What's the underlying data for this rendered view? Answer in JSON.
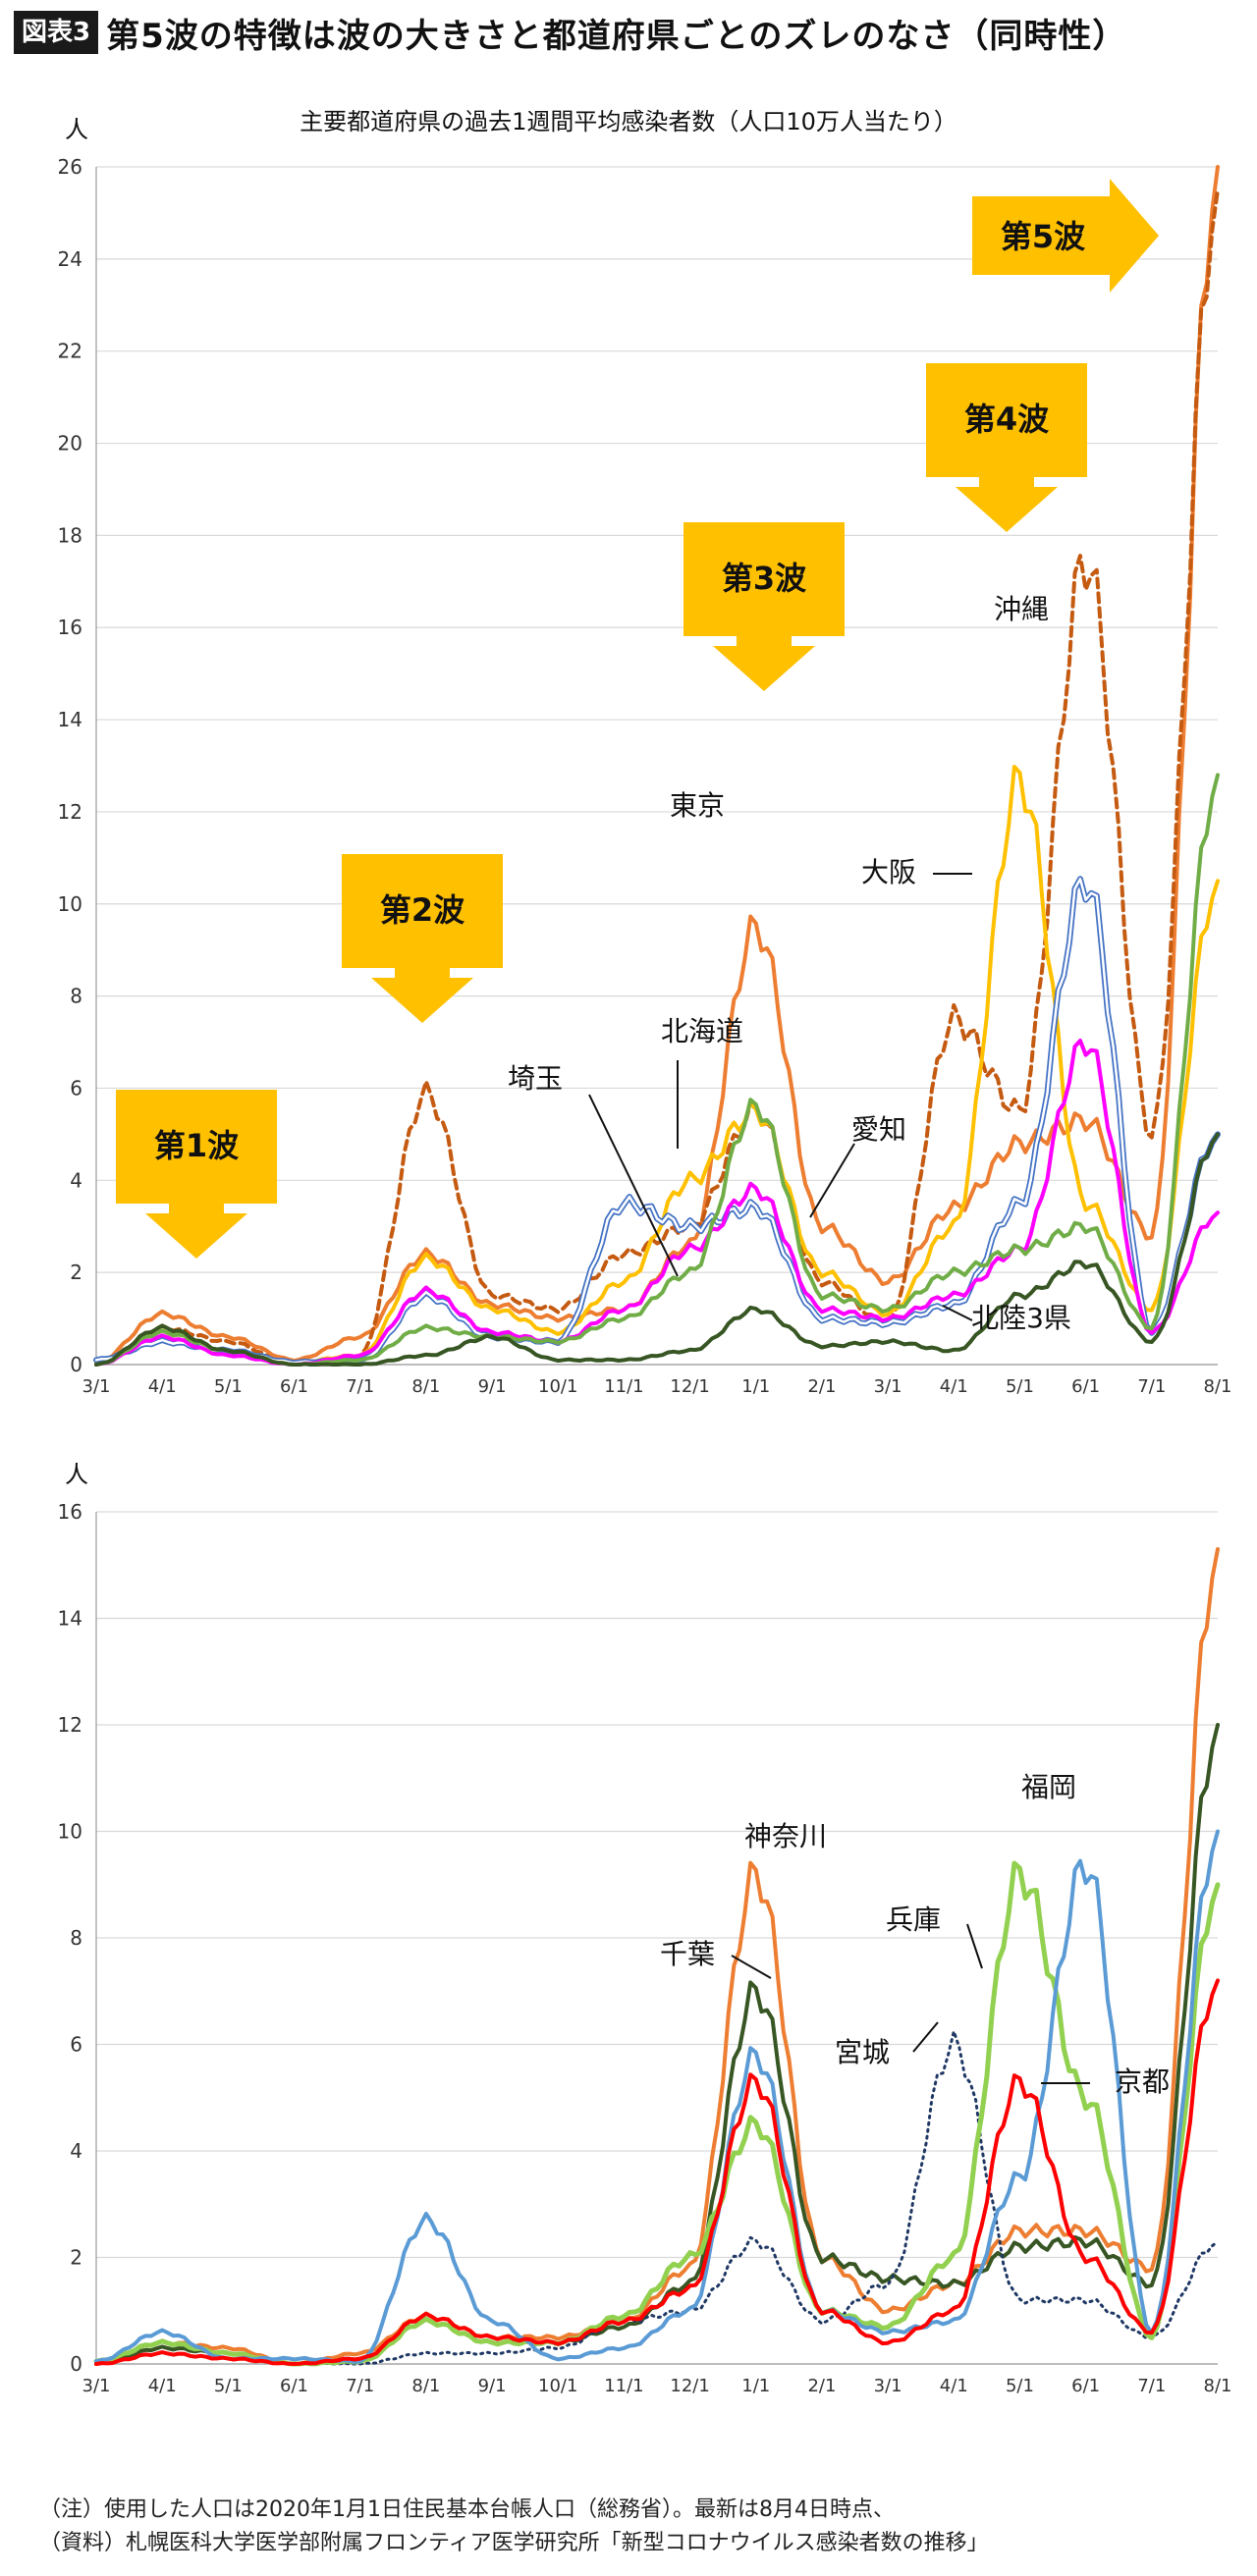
{
  "header": {
    "badge": "図表3",
    "title": "第5波の特徴は波の大きさと都道府県ごとのズレのなさ（同時性）"
  },
  "notes": {
    "line1": "（注）使用した人口は2020年1月1日住民基本台帳人口（総務省）。最新は8月4日時点、",
    "line2": "（資料）札幌医科大学医学部附属フロンティア医学研究所「新型コロナウイルス感染者数の推移」"
  },
  "chart_data": [
    {
      "type": "line",
      "title": "主要都道府県の過去1週間平均感染者数（人口10万人当たり）",
      "ylabel": "人",
      "ylim": [
        0,
        26
      ],
      "yticks": [
        0,
        2,
        4,
        6,
        8,
        10,
        12,
        14,
        16,
        18,
        20,
        22,
        24,
        26
      ],
      "x": [
        "3/1",
        "4/1",
        "5/1",
        "6/1",
        "7/1",
        "8/1",
        "9/1",
        "10/1",
        "11/1",
        "12/1",
        "1/1",
        "2/1",
        "3/1",
        "4/1",
        "5/1",
        "6/1",
        "7/1",
        "8/1"
      ],
      "grid": true,
      "series": [
        {
          "name": "東京",
          "color": "#ED7D31",
          "style": "solid",
          "values": [
            0.05,
            1.1,
            0.6,
            0.1,
            0.6,
            2.4,
            1.3,
            1.0,
            1.2,
            2.6,
            9.5,
            3.0,
            1.8,
            3.4,
            4.8,
            5.3,
            2.8,
            26.0
          ]
        },
        {
          "name": "沖縄",
          "color": "#C55A11",
          "style": "dashed",
          "values": [
            0,
            0.8,
            0.5,
            0,
            0.2,
            5.9,
            1.5,
            1.2,
            2.4,
            3.0,
            5.5,
            1.8,
            0.9,
            7.5,
            5.5,
            17.5,
            5.0,
            25.5
          ]
        },
        {
          "name": "大阪",
          "color": "#FFC000",
          "style": "solid",
          "values": [
            0.05,
            0.7,
            0.3,
            0.05,
            0.2,
            2.3,
            1.2,
            0.7,
            1.8,
            4.0,
            5.5,
            2.0,
            1.1,
            3.0,
            12.7,
            3.5,
            1.2,
            10.5
          ]
        },
        {
          "name": "北海道",
          "color": "#4472C4",
          "style": "double",
          "values": [
            0.1,
            0.5,
            0.3,
            0.05,
            0.1,
            1.5,
            0.6,
            0.5,
            3.5,
            3.0,
            3.4,
            1.0,
            0.9,
            1.3,
            3.5,
            10.5,
            0.7,
            5.0
          ]
        },
        {
          "name": "埼玉",
          "color": "#FF00FF",
          "style": "solid",
          "values": [
            0,
            0.6,
            0.2,
            0,
            0.2,
            1.6,
            0.7,
            0.5,
            1.2,
            2.5,
            3.8,
            1.2,
            1.0,
            1.5,
            2.5,
            7.0,
            0.7,
            3.3
          ]
        },
        {
          "name": "愛知",
          "color": "#70AD47",
          "style": "solid",
          "values": [
            0,
            0.7,
            0.3,
            0,
            0.1,
            0.8,
            0.6,
            0.5,
            1.0,
            2.0,
            5.6,
            1.5,
            1.2,
            2.0,
            2.5,
            3.0,
            0.8,
            12.8
          ]
        },
        {
          "name": "北陸3県",
          "color": "#375623",
          "style": "solid",
          "values": [
            0,
            0.8,
            0.3,
            0,
            0,
            0.2,
            0.6,
            0.1,
            0.1,
            0.3,
            1.2,
            0.4,
            0.5,
            0.3,
            1.5,
            2.2,
            0.5,
            5.0
          ]
        }
      ],
      "labels": [
        "東京",
        "沖縄",
        "大阪",
        "北海道",
        "埼玉",
        "愛知",
        "北陸3県"
      ],
      "annotations": [
        "第1波",
        "第2波",
        "第3波",
        "第4波",
        "第5波"
      ]
    },
    {
      "type": "line",
      "ylabel": "人",
      "ylim": [
        0,
        16
      ],
      "yticks": [
        0,
        2,
        4,
        6,
        8,
        10,
        12,
        14,
        16
      ],
      "x": [
        "3/1",
        "4/1",
        "5/1",
        "6/1",
        "7/1",
        "8/1",
        "9/1",
        "10/1",
        "11/1",
        "12/1",
        "1/1",
        "2/1",
        "3/1",
        "4/1",
        "5/1",
        "6/1",
        "7/1",
        "8/1"
      ],
      "grid": true,
      "series": [
        {
          "name": "神奈川",
          "color": "#ED7D31",
          "style": "solid",
          "values": [
            0,
            0.4,
            0.3,
            0,
            0.2,
            0.9,
            0.5,
            0.5,
            0.8,
            1.8,
            9.2,
            2.0,
            1.0,
            1.5,
            2.5,
            2.5,
            1.8,
            15.3
          ]
        },
        {
          "name": "千葉",
          "color": "#375623",
          "style": "solid",
          "values": [
            0,
            0.3,
            0.2,
            0,
            0.1,
            0.8,
            0.4,
            0.4,
            0.7,
            1.5,
            7.0,
            2.0,
            1.6,
            1.5,
            2.2,
            2.3,
            1.5,
            12.0
          ]
        },
        {
          "name": "宮城",
          "color": "#1F3864",
          "style": "dotted",
          "values": [
            0,
            0.2,
            0.1,
            0,
            0,
            0.2,
            0.2,
            0.3,
            0.8,
            1.0,
            2.3,
            0.8,
            1.5,
            6.0,
            1.2,
            1.2,
            0.5,
            2.3
          ]
        },
        {
          "name": "兵庫",
          "color": "#92D050",
          "style": "thick",
          "values": [
            0.05,
            0.4,
            0.2,
            0,
            0.05,
            0.8,
            0.4,
            0.4,
            0.9,
            2.0,
            4.5,
            1.0,
            0.7,
            2.0,
            9.2,
            5.0,
            0.5,
            9.0
          ]
        },
        {
          "name": "福岡",
          "color": "#5B9BD5",
          "style": "solid",
          "values": [
            0.05,
            0.6,
            0.1,
            0.1,
            0.05,
            2.7,
            0.8,
            0.1,
            0.3,
            1.0,
            5.8,
            1.0,
            0.6,
            0.8,
            3.5,
            9.4,
            0.6,
            10.0
          ]
        },
        {
          "name": "京都",
          "color": "#FF0000",
          "style": "solid",
          "values": [
            0,
            0.2,
            0.1,
            0,
            0.1,
            0.9,
            0.5,
            0.4,
            0.8,
            1.4,
            5.3,
            1.0,
            0.4,
            1.0,
            5.3,
            2.0,
            0.6,
            7.2
          ]
        }
      ],
      "labels": [
        "神奈川",
        "千葉",
        "宮城",
        "兵庫",
        "福岡",
        "京都"
      ]
    }
  ]
}
